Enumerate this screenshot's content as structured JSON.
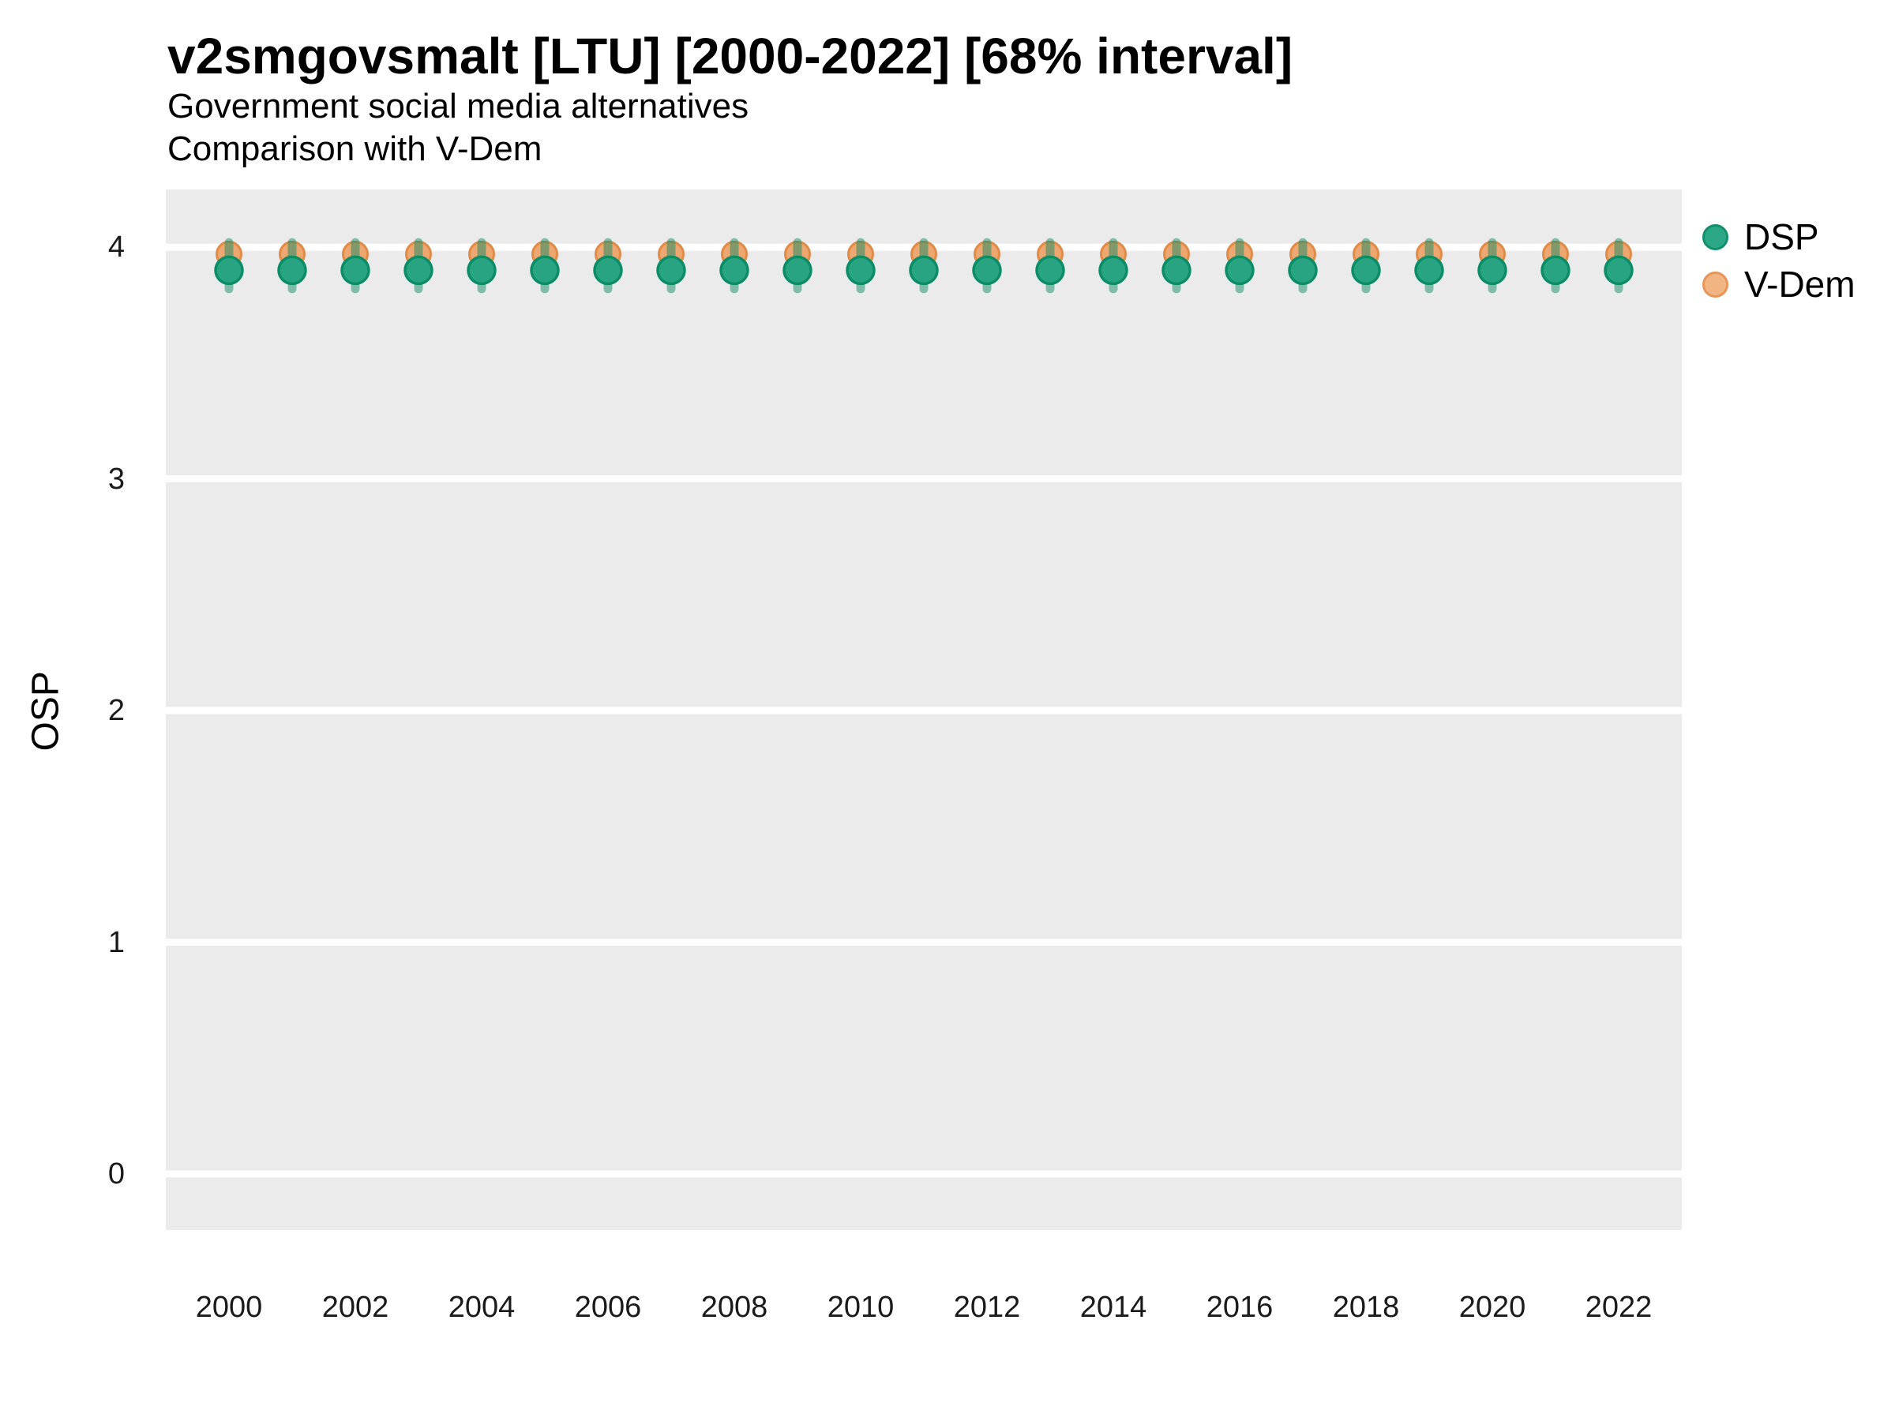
{
  "figure": {
    "title": "v2smgovsmalt [LTU] [2000-2022] [68% interval]",
    "subtitle_line1": "Government social media alternatives",
    "subtitle_line2": "Comparison with V-Dem"
  },
  "chart_data": {
    "type": "scatter",
    "title": "v2smgovsmalt [LTU] [2000-2022] [68% interval]",
    "subtitle": [
      "Government social media alternatives",
      "Comparison with V-Dem"
    ],
    "xlabel": "",
    "ylabel": "OSP",
    "x": [
      2000,
      2001,
      2002,
      2003,
      2004,
      2005,
      2006,
      2007,
      2008,
      2009,
      2010,
      2011,
      2012,
      2013,
      2014,
      2015,
      2016,
      2017,
      2018,
      2019,
      2020,
      2021,
      2022
    ],
    "series": [
      {
        "name": "DSP",
        "style": "point-with-interval",
        "interval": "68%",
        "values": [
          3.9,
          3.9,
          3.9,
          3.9,
          3.9,
          3.9,
          3.9,
          3.9,
          3.9,
          3.9,
          3.9,
          3.9,
          3.9,
          3.9,
          3.9,
          3.9,
          3.9,
          3.9,
          3.9,
          3.9,
          3.9,
          3.9,
          3.9
        ],
        "interval_low": [
          3.82,
          3.82,
          3.82,
          3.82,
          3.82,
          3.82,
          3.82,
          3.82,
          3.82,
          3.82,
          3.82,
          3.82,
          3.82,
          3.82,
          3.82,
          3.82,
          3.82,
          3.82,
          3.82,
          3.82,
          3.82,
          3.82,
          3.82
        ],
        "interval_high": [
          4.02,
          4.02,
          4.02,
          4.02,
          4.02,
          4.02,
          4.02,
          4.02,
          4.02,
          4.02,
          4.02,
          4.02,
          4.02,
          4.02,
          4.02,
          4.02,
          4.02,
          4.02,
          4.02,
          4.02,
          4.02,
          4.02,
          4.02
        ]
      },
      {
        "name": "V-Dem",
        "style": "point",
        "values": [
          3.97,
          3.97,
          3.97,
          3.97,
          3.97,
          3.97,
          3.97,
          3.97,
          3.97,
          3.97,
          3.97,
          3.97,
          3.97,
          3.97,
          3.97,
          3.97,
          3.97,
          3.97,
          3.97,
          3.97,
          3.97,
          3.97,
          3.97
        ]
      }
    ],
    "xlim": [
      1999,
      2023
    ],
    "ylim": [
      -0.242,
      4.249
    ],
    "xticks": [
      2000,
      2002,
      2004,
      2006,
      2008,
      2010,
      2012,
      2014,
      2016,
      2018,
      2020,
      2022
    ],
    "yticks": [
      0,
      1,
      2,
      3,
      4
    ],
    "grid": true,
    "legend_position": "right",
    "colors": {
      "panel_bg": "#EBEBEB",
      "grid": "#FFFFFF",
      "tick_text": "#1A1A1A",
      "dsp_fill": "#28A482",
      "dsp_stroke": "#0D8C68",
      "vdem_fill": "#EDA76F",
      "vdem_stroke": "#DF8C48",
      "interval_band": "rgba(20,140,105,0.5)",
      "legend_dsp_fill": "#2CA886",
      "legend_dsp_stroke": "#128F6C",
      "legend_vdem_fill": "#F0B583",
      "legend_vdem_stroke": "#E89557"
    }
  }
}
